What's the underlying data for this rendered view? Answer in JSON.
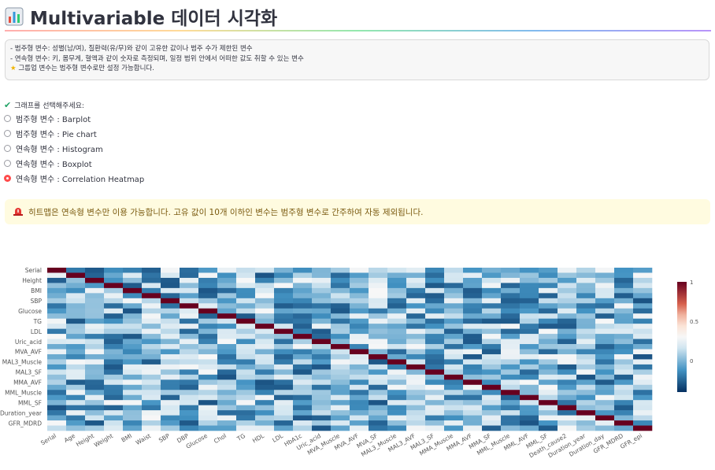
{
  "header": {
    "title": "Multivariable 데이터 시각화",
    "icon": "bar-chart-icon"
  },
  "info_box": {
    "line1": "- 범주형 변수: 성별(남/여), 질환력(유/무)와 같이 고유한 값이나 범주 수가 제한된 변수",
    "line2": "- 연속형 변수: 키, 몸무게, 혈액과 같이 숫자로 측정되며, 일정 범위 안에서 어떠한 값도 취할 수 있는 변수",
    "line3": "그룹업 변수는 범주형 변수로만 설정 가능합니다.",
    "line3_icon": "star-icon"
  },
  "graph_select": {
    "label": "그래프를 선택해주세요:",
    "label_icon": "check-icon",
    "options": [
      {
        "label": "범주형 변수 : Barplot",
        "selected": false
      },
      {
        "label": "범주형 변수 : Pie chart",
        "selected": false
      },
      {
        "label": "연속형 변수 : Histogram",
        "selected": false
      },
      {
        "label": "연속형 변수 : Boxplot",
        "selected": false
      },
      {
        "label": "연속형 변수 : Correlation Heatmap",
        "selected": true
      }
    ]
  },
  "warning": {
    "icon": "siren-icon",
    "text": "히트맵은 연속형 변수만 이용 가능합니다. 고유 값이 10개 이하인 변수는 범주형 변수로 간주하여 자동 제외됩니다."
  },
  "colors": {
    "accent": "#ff4b4b",
    "warning_bg": "#fffbe0",
    "info_bg": "#f7f7f7"
  },
  "chart_data": {
    "type": "heatmap",
    "row_labels": [
      "Serial",
      "Height",
      "BMI",
      "SBP",
      "Glucose",
      "TG",
      "LDL",
      "Uric_acid",
      "MVA_AVF",
      "MAL3_Muscle",
      "MAL3_SF",
      "MMA_AVF",
      "MML_Muscle",
      "MML_SF",
      "Duration_year",
      "GFR_MDRD"
    ],
    "col_labels": [
      "Serial",
      "Age",
      "Height",
      "Weight",
      "BMI",
      "Waist",
      "SBP",
      "DBP",
      "Glucose",
      "Chol",
      "TG",
      "HDL",
      "LDL",
      "HbA1c",
      "Uric_acid",
      "MVA_Muscle",
      "MVA_AVF",
      "MVA_SF",
      "MAL3_Muscle",
      "MAL3_AVF",
      "MAL3_SF",
      "MMA_Muscle",
      "MMA_AVF",
      "MMA_SF",
      "MML_Muscle",
      "MML_AVF",
      "MML_SF",
      "Death_cause2",
      "Duration_year",
      "Duration_day",
      "GFR_MDRD",
      "GFR_epi"
    ],
    "colorbar": {
      "min_label": "0",
      "mid_label": "0.5",
      "max_label": "1"
    },
    "zlim": [
      -0.4,
      1
    ],
    "colorscale": "RdBu_r"
  }
}
